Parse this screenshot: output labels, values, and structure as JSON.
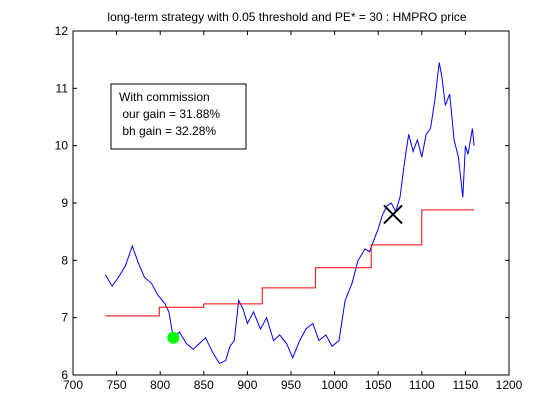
{
  "chart_data": {
    "type": "line",
    "title": "long-term strategy with 0.05 threshold and PE* = 30 : HMPRO price",
    "xlim": [
      700,
      1200
    ],
    "ylim": [
      6,
      12
    ],
    "x_ticks": [
      700,
      750,
      800,
      850,
      900,
      950,
      1000,
      1050,
      1100,
      1150,
      1200
    ],
    "y_ticks": [
      6,
      7,
      8,
      9,
      10,
      11,
      12
    ],
    "grid": false,
    "annotation": {
      "lines": [
        "With commission",
        " our gain = 31.88%",
        " bh gain = 32.28%"
      ]
    },
    "series": [
      {
        "kind": "price",
        "color": "#0000ff",
        "x": [
          737,
          745,
          752,
          760,
          768,
          775,
          782,
          790,
          797,
          805,
          810,
          815,
          822,
          830,
          838,
          845,
          852,
          860,
          868,
          875,
          880,
          885,
          890,
          895,
          900,
          907,
          915,
          922,
          930,
          937,
          945,
          952,
          960,
          967,
          975,
          982,
          990,
          997,
          1005,
          1012,
          1020,
          1027,
          1035,
          1040,
          1045,
          1050,
          1055,
          1060,
          1065,
          1070,
          1075,
          1080,
          1085,
          1090,
          1095,
          1100,
          1105,
          1110,
          1115,
          1120,
          1123,
          1127,
          1132,
          1137,
          1142,
          1147,
          1150,
          1153,
          1158,
          1160
        ],
        "y": [
          7.75,
          7.55,
          7.7,
          7.9,
          8.25,
          7.95,
          7.7,
          7.6,
          7.4,
          7.25,
          7.1,
          6.65,
          6.75,
          6.55,
          6.45,
          6.55,
          6.65,
          6.4,
          6.2,
          6.25,
          6.5,
          6.6,
          7.3,
          7.15,
          6.9,
          7.1,
          6.8,
          7.0,
          6.6,
          6.7,
          6.55,
          6.3,
          6.6,
          6.8,
          6.9,
          6.6,
          6.7,
          6.5,
          6.6,
          7.3,
          7.6,
          8.0,
          8.2,
          8.15,
          8.35,
          8.55,
          8.8,
          8.95,
          9.0,
          8.85,
          9.1,
          9.7,
          10.2,
          9.9,
          10.1,
          9.8,
          10.2,
          10.3,
          10.8,
          11.45,
          11.2,
          10.7,
          10.9,
          10.1,
          9.8,
          9.1,
          10.0,
          9.85,
          10.3,
          10.0
        ]
      },
      {
        "kind": "wealth",
        "color": "#ff0000",
        "x": [
          737,
          799,
          799,
          805,
          805,
          850,
          850,
          917,
          917,
          978,
          978,
          1042,
          1042,
          1081,
          1081,
          1100,
          1100,
          1160
        ],
        "y": [
          7.03,
          7.03,
          7.18,
          7.18,
          7.18,
          7.18,
          7.24,
          7.24,
          7.52,
          7.52,
          7.87,
          7.87,
          8.27,
          8.27,
          8.27,
          8.27,
          8.88,
          8.88
        ]
      }
    ],
    "markers": [
      {
        "kind": "buy",
        "symbol": "circle",
        "color": "#00ff00",
        "x": 815,
        "y": 6.65
      },
      {
        "kind": "sell",
        "symbol": "x",
        "color": "#000000",
        "x": 1067,
        "y": 8.8
      }
    ]
  }
}
